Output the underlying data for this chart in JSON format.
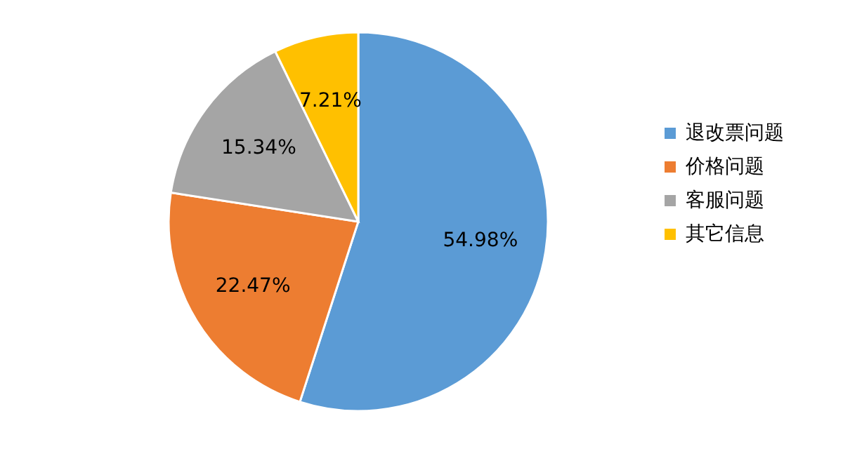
{
  "chart_data": {
    "type": "pie",
    "categories": [
      "退改票问题",
      "价格问题",
      "客服问题",
      "其它信息"
    ],
    "values": [
      54.98,
      22.47,
      15.34,
      7.21
    ],
    "value_labels": [
      "54.98%",
      "22.47%",
      "15.34%",
      "7.21%"
    ],
    "colors": [
      "#5b9bd5",
      "#ed7d31",
      "#a5a5a5",
      "#ffc000"
    ],
    "legend": "right"
  }
}
